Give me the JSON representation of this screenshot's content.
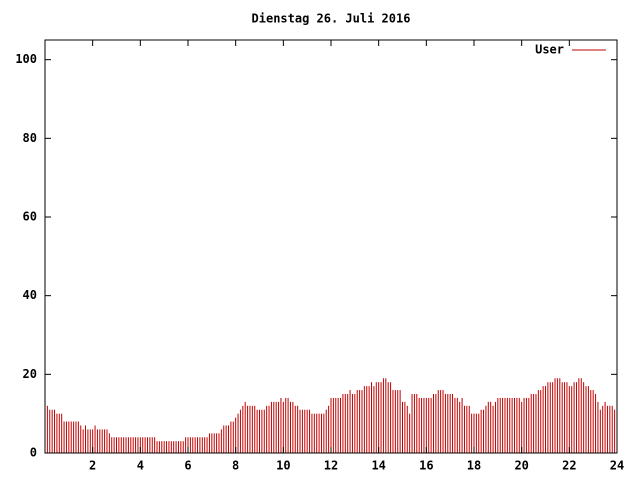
{
  "chart_data": {
    "type": "impulse",
    "title": "Dienstag 26. Juli 2016",
    "series": [
      {
        "name": "User",
        "color": "#c00000",
        "x": [
          0,
          0.1,
          0.2,
          0.3,
          0.4,
          0.5,
          0.6,
          0.7,
          0.8,
          0.9,
          1,
          1.1,
          1.2,
          1.3,
          1.4,
          1.5,
          1.6,
          1.7,
          1.8,
          1.9,
          2,
          2.1,
          2.2,
          2.3,
          2.4,
          2.5,
          2.6,
          2.7,
          2.8,
          2.9,
          3,
          3.1,
          3.2,
          3.3,
          3.4,
          3.5,
          3.6,
          3.7,
          3.8,
          3.9,
          4,
          4.1,
          4.2,
          4.3,
          4.4,
          4.5,
          4.6,
          4.7,
          4.8,
          4.9,
          5,
          5.1,
          5.2,
          5.3,
          5.4,
          5.5,
          5.6,
          5.7,
          5.8,
          5.9,
          6,
          6.1,
          6.2,
          6.3,
          6.4,
          6.5,
          6.6,
          6.7,
          6.8,
          6.9,
          7,
          7.1,
          7.2,
          7.3,
          7.4,
          7.5,
          7.6,
          7.7,
          7.8,
          7.9,
          8,
          8.1,
          8.2,
          8.3,
          8.4,
          8.5,
          8.6,
          8.7,
          8.8,
          8.9,
          9,
          9.1,
          9.2,
          9.3,
          9.4,
          9.5,
          9.6,
          9.7,
          9.8,
          9.9,
          10,
          10.1,
          10.2,
          10.3,
          10.4,
          10.5,
          10.6,
          10.7,
          10.8,
          10.9,
          11,
          11.1,
          11.2,
          11.3,
          11.4,
          11.5,
          11.6,
          11.7,
          11.8,
          11.9,
          12,
          12.1,
          12.2,
          12.3,
          12.4,
          12.5,
          12.6,
          12.7,
          12.8,
          12.9,
          13,
          13.1,
          13.2,
          13.3,
          13.4,
          13.5,
          13.6,
          13.7,
          13.8,
          13.9,
          14,
          14.1,
          14.2,
          14.3,
          14.4,
          14.5,
          14.6,
          14.7,
          14.8,
          14.9,
          15,
          15.1,
          15.2,
          15.3,
          15.4,
          15.5,
          15.6,
          15.7,
          15.8,
          15.9,
          16,
          16.1,
          16.2,
          16.3,
          16.4,
          16.5,
          16.6,
          16.7,
          16.8,
          16.9,
          17,
          17.1,
          17.2,
          17.3,
          17.4,
          17.5,
          17.6,
          17.7,
          17.8,
          17.9,
          18,
          18.1,
          18.2,
          18.3,
          18.4,
          18.5,
          18.6,
          18.7,
          18.8,
          18.9,
          19,
          19.1,
          19.2,
          19.3,
          19.4,
          19.5,
          19.6,
          19.7,
          19.8,
          19.9,
          20,
          20.1,
          20.2,
          20.3,
          20.4,
          20.5,
          20.6,
          20.7,
          20.8,
          20.9,
          21,
          21.1,
          21.2,
          21.3,
          21.4,
          21.5,
          21.6,
          21.7,
          21.8,
          21.9,
          22,
          22.1,
          22.2,
          22.3,
          22.4,
          22.5,
          22.6,
          22.7,
          22.8,
          22.9,
          23,
          23.1,
          23.2,
          23.3,
          23.4,
          23.5,
          23.6,
          23.7,
          23.8,
          23.9
        ],
        "values": [
          12,
          12,
          11,
          11,
          11,
          10,
          10,
          10,
          8,
          8,
          8,
          8,
          8,
          8,
          8,
          7,
          6,
          7,
          6,
          6,
          6,
          7,
          6,
          6,
          6,
          6,
          6,
          5,
          4,
          4,
          4,
          4,
          4,
          4,
          4,
          4,
          4,
          4,
          4,
          4,
          4,
          4,
          4,
          4,
          4,
          4,
          4,
          3,
          3,
          3,
          3,
          3,
          3,
          3,
          3,
          3,
          3,
          3,
          3,
          4,
          4,
          4,
          4,
          4,
          4,
          4,
          4,
          4,
          4,
          5,
          5,
          5,
          5,
          5,
          6,
          7,
          7,
          7,
          8,
          8,
          9,
          10,
          11,
          12,
          13,
          12,
          12,
          12,
          12,
          11,
          11,
          11,
          11,
          12,
          12,
          13,
          13,
          13,
          13,
          14,
          13,
          14,
          14,
          13,
          13,
          12,
          12,
          11,
          11,
          11,
          11,
          11,
          10,
          10,
          10,
          10,
          10,
          10,
          11,
          12,
          14,
          14,
          14,
          14,
          14,
          15,
          15,
          15,
          16,
          15,
          15,
          16,
          16,
          16,
          17,
          17,
          17,
          18,
          17,
          18,
          18,
          18,
          19,
          19,
          18,
          18,
          16,
          16,
          16,
          16,
          13,
          13,
          12,
          10,
          15,
          15,
          15,
          14,
          14,
          14,
          14,
          14,
          14,
          15,
          15,
          16,
          16,
          16,
          15,
          15,
          15,
          15,
          14,
          14,
          13,
          14,
          12,
          12,
          12,
          10,
          10,
          10,
          10,
          11,
          11,
          12,
          13,
          13,
          12,
          13,
          14,
          14,
          14,
          14,
          14,
          14,
          14,
          14,
          14,
          14,
          13,
          14,
          14,
          14,
          15,
          15,
          15,
          16,
          16,
          17,
          17,
          18,
          18,
          18,
          19,
          19,
          19,
          18,
          18,
          18,
          17,
          17,
          18,
          18,
          19,
          19,
          18,
          17,
          17,
          16,
          16,
          15,
          13,
          11,
          12,
          13,
          12,
          12,
          12,
          11
        ]
      }
    ],
    "xlim": [
      0,
      24
    ],
    "xticks": [
      2,
      4,
      6,
      8,
      10,
      12,
      14,
      16,
      18,
      20,
      22,
      24
    ],
    "ylim": [
      0,
      105
    ],
    "yticks": [
      0,
      20,
      40,
      60,
      80,
      100
    ],
    "legend": "top-right"
  }
}
